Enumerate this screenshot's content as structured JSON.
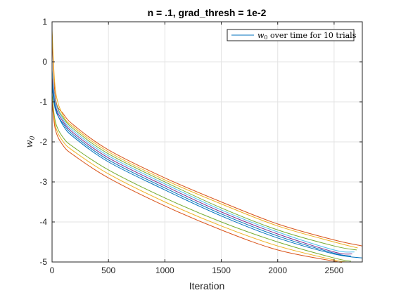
{
  "chart_data": {
    "type": "line",
    "title": "n = .1, grad_thresh = 1e-2",
    "xlabel": "Iteration",
    "ylabel": "w0",
    "xlim": [
      0,
      2750
    ],
    "ylim": [
      -5,
      1
    ],
    "xticks": [
      0,
      500,
      1000,
      1500,
      2000,
      2500
    ],
    "xtick_labels": [
      "0",
      "500",
      "1000",
      "1500",
      "2000",
      "2500"
    ],
    "yticks": [
      1,
      0,
      -1,
      -2,
      -3,
      -4,
      -5
    ],
    "ytick_labels": [
      "1",
      "0",
      "-1",
      "-2",
      "-3",
      "-4",
      "-5"
    ],
    "grid": true,
    "legend": {
      "position": "top-right",
      "entries": [
        "w0 over time for 10 trials"
      ]
    },
    "legend_label_main": "w",
    "legend_label_sub": "0",
    "legend_label_rest": " over time for 10 trials",
    "ylabel_main": "w",
    "ylabel_sub": "0",
    "series": [
      {
        "color": "#D95319",
        "x": [
          0,
          30,
          100,
          200,
          500,
          1000,
          1500,
          2000,
          2500,
          2750
        ],
        "y": [
          0.7,
          -0.9,
          -1.3,
          -1.6,
          -2.2,
          -2.9,
          -3.5,
          -4.05,
          -4.45,
          -4.6
        ]
      },
      {
        "color": "#EDB120",
        "x": [
          0,
          30,
          100,
          200,
          500,
          1000,
          1500,
          2000,
          2500,
          2710
        ],
        "y": [
          0.8,
          -0.7,
          -1.35,
          -1.65,
          -2.25,
          -2.95,
          -3.55,
          -4.1,
          -4.5,
          -4.65
        ]
      },
      {
        "color": "#77AC30",
        "x": [
          0,
          30,
          100,
          200,
          500,
          1000,
          1500,
          2000,
          2500,
          2700
        ],
        "y": [
          -0.3,
          -1.0,
          -1.4,
          -1.7,
          -2.3,
          -3.0,
          -3.65,
          -4.2,
          -4.6,
          -4.7
        ]
      },
      {
        "color": "#4DBEEE",
        "x": [
          0,
          30,
          100,
          200,
          500,
          1000,
          1500,
          2000,
          2500,
          2680
        ],
        "y": [
          -0.2,
          -1.0,
          -1.45,
          -1.75,
          -2.35,
          -3.05,
          -3.7,
          -4.25,
          -4.7,
          -4.75
        ]
      },
      {
        "color": "#7E2F8E",
        "x": [
          0,
          30,
          100,
          200,
          500,
          1000,
          1500,
          2000,
          2500,
          2660
        ],
        "y": [
          -0.4,
          -1.1,
          -1.5,
          -1.8,
          -2.4,
          -3.1,
          -3.75,
          -4.3,
          -4.75,
          -4.8
        ]
      },
      {
        "color": "#0072BD",
        "x": [
          0,
          30,
          100,
          200,
          500,
          1000,
          1500,
          2000,
          2500,
          2750
        ],
        "y": [
          -0.5,
          -1.15,
          -1.6,
          -1.9,
          -2.5,
          -3.2,
          -3.85,
          -4.4,
          -4.8,
          -4.9
        ]
      },
      {
        "color": "#0072BD",
        "x": [
          0,
          30,
          100,
          200,
          500,
          1000,
          1500,
          2000,
          2500,
          2650
        ],
        "y": [
          -0.6,
          -1.2,
          -1.55,
          -1.85,
          -2.45,
          -3.15,
          -3.8,
          -4.35,
          -4.78,
          -4.85
        ]
      },
      {
        "color": "#77AC30",
        "x": [
          0,
          30,
          100,
          200,
          500,
          1000,
          1500,
          2000,
          2500,
          2650
        ],
        "y": [
          -0.8,
          -1.5,
          -1.9,
          -2.15,
          -2.7,
          -3.4,
          -4.0,
          -4.5,
          -4.9,
          -4.98
        ]
      },
      {
        "color": "#EDB120",
        "x": [
          0,
          30,
          100,
          200,
          500,
          1000,
          1500,
          2000,
          2500,
          2620
        ],
        "y": [
          -0.9,
          -1.6,
          -2.0,
          -2.25,
          -2.8,
          -3.5,
          -4.1,
          -4.6,
          -4.95,
          -5.0
        ]
      },
      {
        "color": "#D95319",
        "x": [
          0,
          30,
          100,
          200,
          500,
          1000,
          1500,
          2000,
          2500,
          2570
        ],
        "y": [
          -1.0,
          -1.7,
          -2.1,
          -2.35,
          -2.9,
          -3.6,
          -4.2,
          -4.7,
          -4.98,
          -5.0
        ]
      }
    ]
  }
}
